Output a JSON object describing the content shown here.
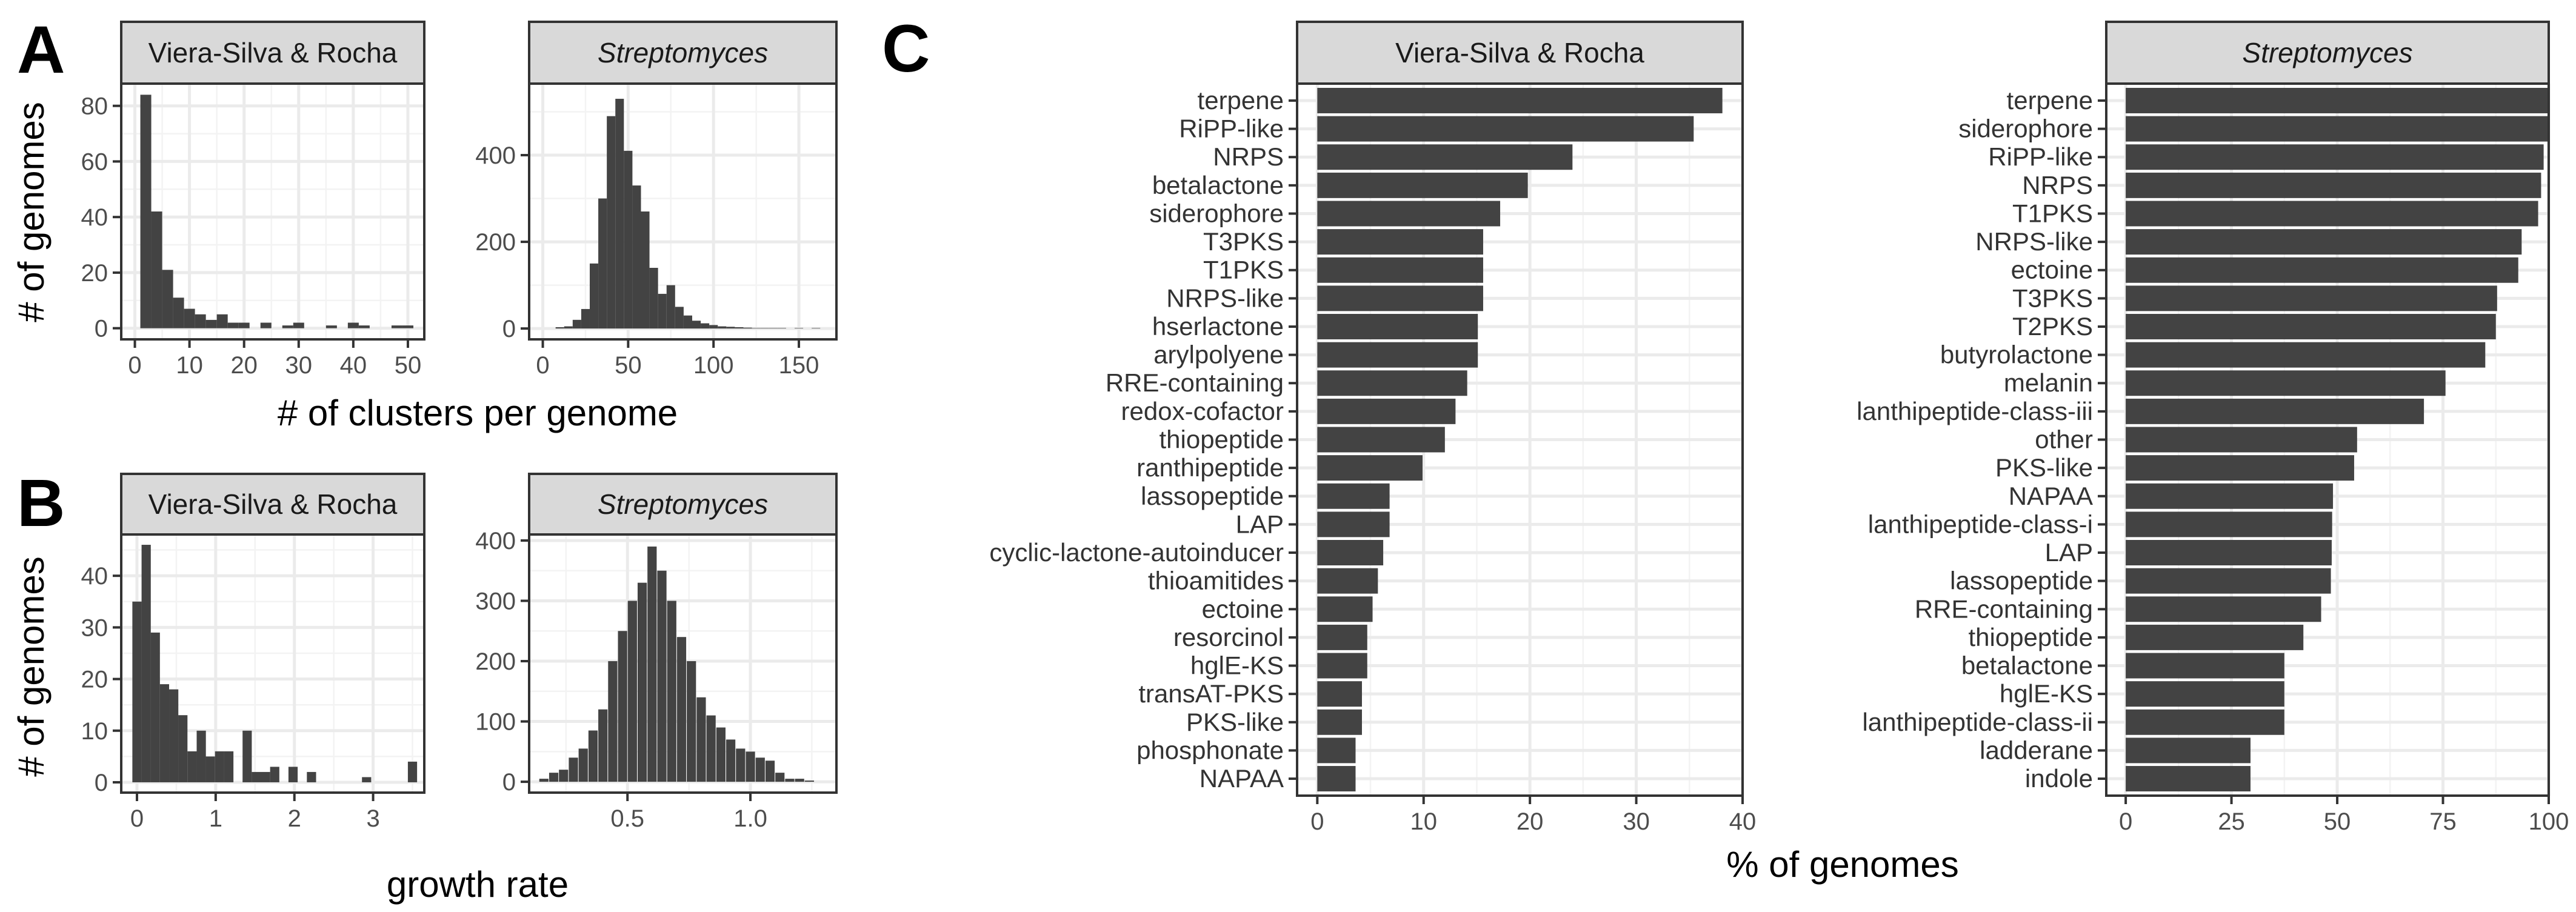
{
  "panel_letters": {
    "a": "A",
    "b": "B",
    "c": "C"
  },
  "shared_labels": {
    "a_xlabel": "# of clusters per genome",
    "a_ylabel": "# of genomes",
    "b_xlabel": "growth rate",
    "b_ylabel": "# of genomes",
    "c_xlabel": "% of genomes"
  },
  "chart_data": [
    {
      "id": "A1",
      "type": "bar",
      "panel": "A",
      "strip": "Viera-Silva  & Rocha",
      "strip_italic": false,
      "xlim": [
        -2.5,
        53
      ],
      "ylim": [
        -4,
        88
      ],
      "xticks": [
        0,
        10,
        20,
        30,
        40,
        50
      ],
      "yticks": [
        0,
        20,
        40,
        60,
        80
      ],
      "bin_width": 2,
      "bins": [
        [
          2,
          84
        ],
        [
          4,
          42
        ],
        [
          6,
          21
        ],
        [
          8,
          11
        ],
        [
          10,
          7
        ],
        [
          12,
          5
        ],
        [
          14,
          3
        ],
        [
          16,
          5
        ],
        [
          18,
          2
        ],
        [
          20,
          2
        ],
        [
          24,
          2
        ],
        [
          28,
          1
        ],
        [
          30,
          2
        ],
        [
          36,
          1
        ],
        [
          40,
          2
        ],
        [
          42,
          1
        ],
        [
          48,
          1
        ],
        [
          50,
          1
        ]
      ]
    },
    {
      "id": "A2",
      "type": "bar",
      "panel": "A",
      "strip": "Streptomyces",
      "strip_italic": true,
      "xlim": [
        -8,
        172
      ],
      "ylim": [
        -25,
        565
      ],
      "xticks": [
        0,
        50,
        100,
        150
      ],
      "yticks": [
        0,
        200,
        400
      ],
      "bin_width": 5,
      "bins": [
        [
          10,
          3
        ],
        [
          15,
          5
        ],
        [
          20,
          20
        ],
        [
          25,
          45
        ],
        [
          30,
          150
        ],
        [
          35,
          300
        ],
        [
          40,
          490
        ],
        [
          45,
          530
        ],
        [
          50,
          410
        ],
        [
          55,
          330
        ],
        [
          60,
          270
        ],
        [
          65,
          140
        ],
        [
          70,
          80
        ],
        [
          75,
          100
        ],
        [
          80,
          50
        ],
        [
          85,
          30
        ],
        [
          90,
          18
        ],
        [
          95,
          12
        ],
        [
          100,
          8
        ],
        [
          105,
          5
        ],
        [
          110,
          4
        ],
        [
          115,
          3
        ],
        [
          120,
          2
        ],
        [
          125,
          1
        ],
        [
          130,
          1
        ],
        [
          135,
          1
        ],
        [
          140,
          1
        ],
        [
          150,
          1
        ],
        [
          160,
          1
        ]
      ]
    },
    {
      "id": "B1",
      "type": "bar",
      "panel": "B",
      "strip": "Viera-Silva  & Rocha",
      "strip_italic": false,
      "xlim": [
        -0.2,
        3.65
      ],
      "ylim": [
        -2,
        48
      ],
      "xticks": [
        0,
        1,
        2,
        3
      ],
      "yticks": [
        0,
        10,
        20,
        30,
        40
      ],
      "bin_width": 0.117,
      "bins": [
        [
          0,
          35
        ],
        [
          0.117,
          46
        ],
        [
          0.233,
          29
        ],
        [
          0.35,
          19
        ],
        [
          0.467,
          18
        ],
        [
          0.583,
          13
        ],
        [
          0.7,
          6
        ],
        [
          0.817,
          10
        ],
        [
          0.933,
          5
        ],
        [
          1.05,
          6
        ],
        [
          1.167,
          6
        ],
        [
          1.4,
          10
        ],
        [
          1.517,
          2
        ],
        [
          1.633,
          2
        ],
        [
          1.75,
          3
        ],
        [
          1.983,
          3
        ],
        [
          2.217,
          2
        ],
        [
          2.917,
          1
        ],
        [
          3.5,
          4
        ]
      ]
    },
    {
      "id": "B2",
      "type": "bar",
      "panel": "B",
      "strip": "Streptomyces",
      "strip_italic": true,
      "xlim": [
        0.1,
        1.35
      ],
      "ylim": [
        -18,
        410
      ],
      "xticks": [
        0.5,
        1.0
      ],
      "xtick_labels": [
        "0.5",
        "1.0"
      ],
      "yticks": [
        0,
        100,
        200,
        300,
        400
      ],
      "bin_width": 0.0375,
      "bins": [
        [
          0.16,
          5
        ],
        [
          0.2,
          15
        ],
        [
          0.24,
          20
        ],
        [
          0.28,
          40
        ],
        [
          0.32,
          55
        ],
        [
          0.36,
          85
        ],
        [
          0.4,
          120
        ],
        [
          0.44,
          200
        ],
        [
          0.48,
          250
        ],
        [
          0.52,
          300
        ],
        [
          0.56,
          330
        ],
        [
          0.6,
          390
        ],
        [
          0.64,
          350
        ],
        [
          0.68,
          300
        ],
        [
          0.72,
          240
        ],
        [
          0.76,
          200
        ],
        [
          0.8,
          140
        ],
        [
          0.84,
          110
        ],
        [
          0.88,
          90
        ],
        [
          0.92,
          70
        ],
        [
          0.96,
          55
        ],
        [
          1.0,
          50
        ],
        [
          1.04,
          40
        ],
        [
          1.08,
          35
        ],
        [
          1.12,
          15
        ],
        [
          1.16,
          5
        ],
        [
          1.2,
          5
        ],
        [
          1.24,
          2
        ]
      ]
    },
    {
      "id": "C1",
      "type": "bar",
      "orientation": "horizontal",
      "panel": "C",
      "strip": "Viera-Silva  & Rocha",
      "strip_italic": false,
      "xlim": [
        -1.9,
        40
      ],
      "xticks": [
        0,
        10,
        20,
        30,
        40
      ],
      "categories": [
        "terpene",
        "RiPP-like",
        "NRPS",
        "betalactone",
        "siderophore",
        "T3PKS",
        "T1PKS",
        "NRPS-like",
        "hserlactone",
        "arylpolyene",
        "RRE-containing",
        "redox-cofactor",
        "thiopeptide",
        "ranthipeptide",
        "lassopeptide",
        "LAP",
        "cyclic-lactone-autoinducer",
        "thioamitides",
        "ectoine",
        "resorcinol",
        "hglE-KS",
        "transAT-PKS",
        "PKS-like",
        "phosphonate",
        "NAPAA"
      ],
      "values": [
        38.1,
        35.4,
        24.0,
        19.8,
        17.2,
        15.6,
        15.6,
        15.6,
        15.1,
        15.1,
        14.1,
        13.0,
        12.0,
        9.9,
        6.8,
        6.8,
        6.2,
        5.7,
        5.2,
        4.7,
        4.7,
        4.2,
        4.2,
        3.6,
        3.6
      ]
    },
    {
      "id": "C2",
      "type": "bar",
      "orientation": "horizontal",
      "panel": "C",
      "strip": "Streptomyces",
      "strip_italic": true,
      "xlim": [
        -4.6,
        100
      ],
      "xticks": [
        0,
        25,
        50,
        75,
        100
      ],
      "categories": [
        "terpene",
        "siderophore",
        "RiPP-like",
        "NRPS",
        "T1PKS",
        "NRPS-like",
        "ectoine",
        "T3PKS",
        "T2PKS",
        "butyrolactone",
        "melanin",
        "lanthipeptide-class-iii",
        "other",
        "PKS-like",
        "NAPAA",
        "lanthipeptide-class-i",
        "LAP",
        "lassopeptide",
        "RRE-containing",
        "thiopeptide",
        "betalactone",
        "hglE-KS",
        "lanthipeptide-class-ii",
        "ladderane",
        "indole"
      ],
      "values": [
        99.9,
        99.8,
        98.8,
        98.2,
        97.5,
        93.6,
        92.8,
        87.8,
        87.5,
        85.0,
        75.6,
        70.5,
        54.7,
        54.0,
        49.0,
        48.8,
        48.7,
        48.5,
        46.2,
        42.0,
        37.5,
        37.5,
        37.5,
        29.5,
        29.5
      ]
    }
  ]
}
